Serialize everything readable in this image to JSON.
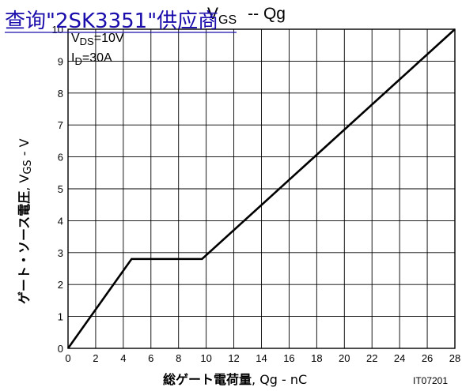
{
  "overlay_link": {
    "text": "查询\"2SK3351\"供应商"
  },
  "chart_data": {
    "type": "line",
    "title": "VGS -- Qg",
    "title_parts": {
      "main": "V",
      "sub": "GS",
      "tail": "-- Qg"
    },
    "xlabel": "総ゲート電荷量, Qg - nC",
    "xlabel_parts": {
      "bold": "総ゲート電荷量",
      "rest": ", Qg - nC"
    },
    "ylabel": "ゲート・ソース電圧, VGS - V",
    "ylabel_parts": {
      "bold": "ゲート・ソース電圧",
      "rest": ", V",
      "sub": "GS",
      "tail": " - V"
    },
    "xlim": [
      0,
      28
    ],
    "ylim": [
      0,
      10
    ],
    "x_ticks": [
      "0",
      "2",
      "4",
      "6",
      "8",
      "10",
      "12",
      "14",
      "16",
      "18",
      "20",
      "22",
      "24",
      "26",
      "28"
    ],
    "y_ticks": [
      "0",
      "1",
      "2",
      "3",
      "4",
      "5",
      "6",
      "7",
      "8",
      "9",
      "10"
    ],
    "grid": true,
    "annotations": [
      {
        "main": "V",
        "sub": "DS",
        "tail": "=10V"
      },
      {
        "main": "I",
        "sub": "D",
        "tail": "=30A"
      }
    ],
    "figure_code": "IT07201",
    "series": [
      {
        "x": [
          0,
          4.6,
          9.7,
          28
        ],
        "y": [
          0,
          2.8,
          2.8,
          10
        ],
        "color": "#000000"
      }
    ]
  }
}
